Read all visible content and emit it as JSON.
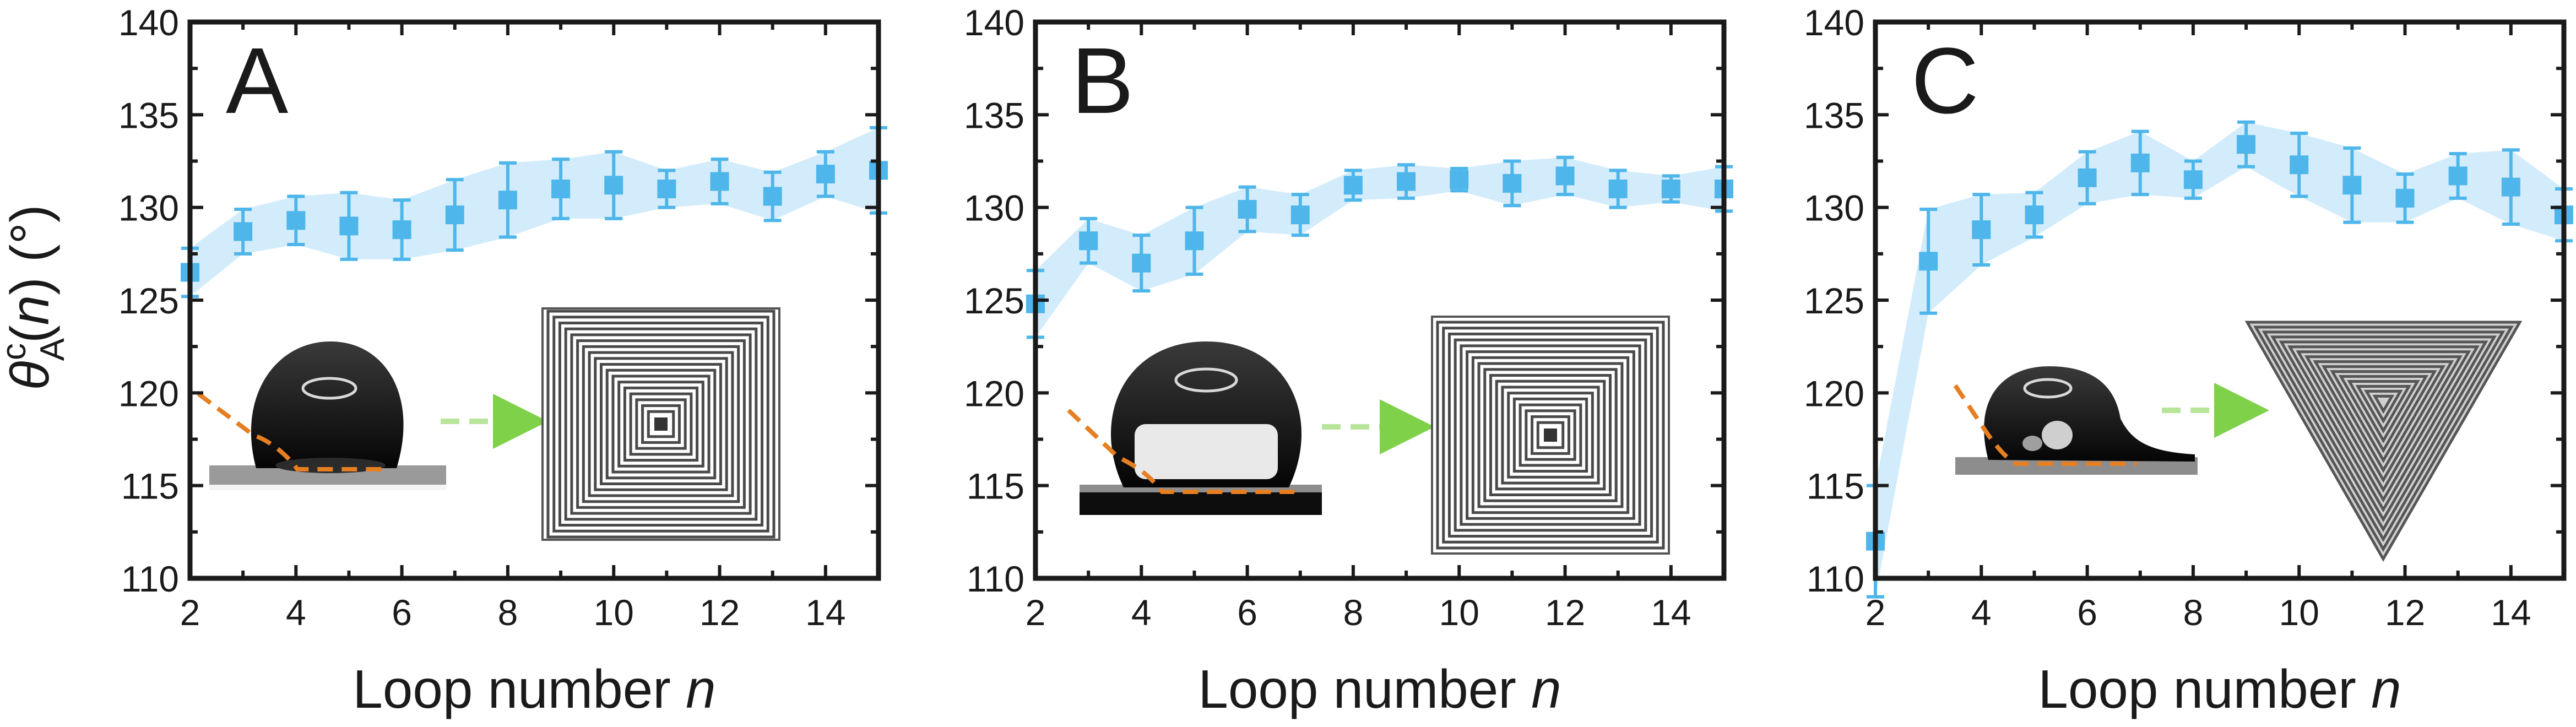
{
  "chart_data": [
    {
      "type": "scatter",
      "panel_label": "A",
      "x": [
        2,
        3,
        4,
        5,
        6,
        7,
        8,
        9,
        10,
        11,
        12,
        13,
        14,
        15
      ],
      "y": [
        126.5,
        128.7,
        129.3,
        129.0,
        128.8,
        129.6,
        130.4,
        131.0,
        131.2,
        131.0,
        131.4,
        130.6,
        131.8,
        132.0
      ],
      "err": [
        1.3,
        1.2,
        1.3,
        1.8,
        1.6,
        1.9,
        2.0,
        1.6,
        1.8,
        1.0,
        1.2,
        1.3,
        1.2,
        2.3
      ],
      "xlabel": "Loop number n",
      "ylabel": "θAc(n) (°)",
      "xlim": [
        2,
        15
      ],
      "ylim": [
        110,
        140
      ],
      "xticks": [
        2,
        4,
        6,
        8,
        10,
        12,
        14
      ],
      "yticks": [
        110,
        115,
        120,
        125,
        130,
        135,
        140
      ],
      "insets": [
        "droplet-photo",
        "arrow",
        "square-spiral-pattern"
      ]
    },
    {
      "type": "scatter",
      "panel_label": "B",
      "x": [
        2,
        3,
        4,
        5,
        6,
        7,
        8,
        9,
        10,
        11,
        12,
        13,
        14,
        15
      ],
      "y": [
        124.8,
        128.2,
        127.0,
        128.2,
        129.9,
        129.6,
        131.2,
        131.4,
        131.5,
        131.3,
        131.7,
        131.0,
        131.0,
        131.0
      ],
      "err": [
        1.8,
        1.2,
        1.5,
        1.8,
        1.2,
        1.1,
        0.8,
        0.9,
        0.6,
        1.2,
        1.0,
        1.0,
        0.7,
        1.2
      ],
      "xlabel": "Loop number n",
      "ylabel": "θAc(n) (°)",
      "xlim": [
        2,
        15
      ],
      "ylim": [
        110,
        140
      ],
      "xticks": [
        2,
        4,
        6,
        8,
        10,
        12,
        14
      ],
      "yticks": [
        110,
        115,
        120,
        125,
        130,
        135,
        140
      ],
      "insets": [
        "droplet-photo",
        "arrow",
        "square-spiral-pattern"
      ]
    },
    {
      "type": "scatter",
      "panel_label": "C",
      "x": [
        2,
        3,
        4,
        5,
        6,
        7,
        8,
        9,
        10,
        11,
        12,
        13,
        14,
        15
      ],
      "y": [
        112.0,
        127.1,
        128.8,
        129.6,
        131.6,
        132.4,
        131.5,
        133.4,
        132.3,
        131.2,
        130.5,
        131.7,
        131.1,
        129.6
      ],
      "err": [
        3.0,
        2.8,
        1.9,
        1.2,
        1.4,
        1.7,
        1.0,
        1.2,
        1.7,
        2.0,
        1.3,
        1.2,
        2.0,
        1.4
      ],
      "xlabel": "Loop number n",
      "ylabel": "θAc(n) (°)",
      "xlim": [
        2,
        15
      ],
      "ylim": [
        110,
        140
      ],
      "xticks": [
        2,
        4,
        6,
        8,
        10,
        12,
        14
      ],
      "yticks": [
        110,
        115,
        120,
        125,
        130,
        135,
        140
      ],
      "insets": [
        "droplet-photo",
        "arrow",
        "triangle-spiral-pattern"
      ]
    }
  ],
  "colors": {
    "series": "#4eb6ea",
    "band": "#d3ecfb",
    "axis": "#1a1a1a",
    "dashed_outline": "#e67e22",
    "arrow": "#7fd14a"
  },
  "y_axis_label": {
    "theta": "θ",
    "superscript": "c",
    "subscript": "A",
    "arg_open": "(",
    "arg": "n",
    "arg_close": ")",
    "unit": " (°)"
  },
  "x_axis_label": {
    "text": "Loop number ",
    "var": "n"
  }
}
